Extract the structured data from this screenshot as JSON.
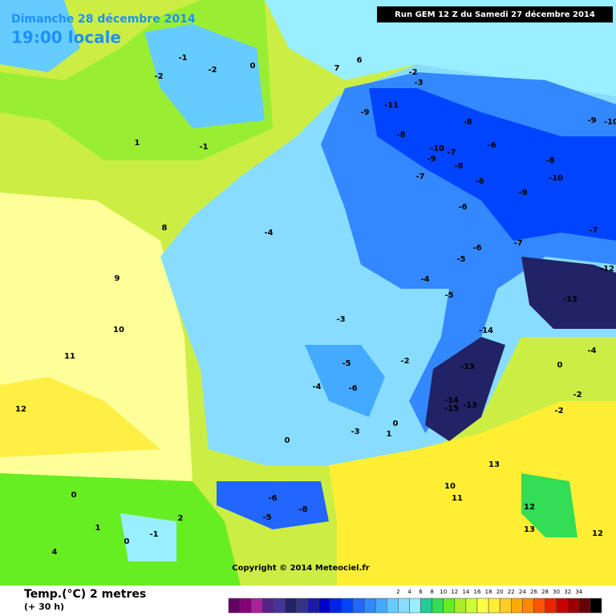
{
  "header": {
    "date": "Dimanche 28 décembre 2014",
    "time": "19:00 locale",
    "run": "Run GEM 12 Z du Samedi 27 décembre 2014"
  },
  "footer": {
    "copyright": "Copyright © 2014 Meteociel.fr",
    "variable": "Temp.(°C) 2 metres",
    "lead": "(+ 30 h)"
  },
  "legend": {
    "ticks": [
      2,
      4,
      6,
      8,
      10,
      12,
      14,
      16,
      18,
      20,
      22,
      24,
      26,
      28,
      30,
      32,
      34
    ],
    "colors": [
      "#660066",
      "#880077",
      "#aa2299",
      "#552288",
      "#443399",
      "#222266",
      "#333388",
      "#1a1aaa",
      "#0000cc",
      "#0022ee",
      "#0044ff",
      "#2266ff",
      "#3388ff",
      "#44aaff",
      "#66ccff",
      "#88ddff",
      "#99eeff",
      "#22cc99",
      "#33dd55",
      "#66ee22",
      "#aaee22",
      "#ccff33",
      "#ffff44",
      "#ffee33",
      "#ffcc22",
      "#ffaa00",
      "#ff8800",
      "#ff5500",
      "#ee2200",
      "#cc0000",
      "#990000",
      "#660000",
      "#000000"
    ]
  },
  "map": {
    "labels": [
      "-1",
      "-2",
      "0",
      "-2",
      "7",
      "6",
      "-2",
      "-3",
      "-9",
      "-11",
      "-8",
      "-10",
      "-9",
      "-8",
      "-7",
      "-8",
      "-6",
      "-7",
      "-6",
      "-6",
      "-10",
      "-9",
      "-8",
      "-9",
      "-10",
      "-7",
      "-7",
      "-6",
      "-5",
      "-4",
      "-5",
      "-12",
      "-13",
      "-4",
      "-3",
      "-5",
      "-4",
      "-6",
      "-2",
      "-14",
      "-13",
      "-14",
      "-15",
      "-13",
      "0",
      "1",
      "-3",
      "0",
      "-6",
      "-8",
      "-5",
      "8",
      "9",
      "10",
      "11",
      "12",
      "0",
      "1",
      "-1",
      "0",
      "4",
      "2",
      "13",
      "11",
      "10",
      "12",
      "13",
      "12",
      "-2",
      "-2",
      "-4",
      "0",
      "1",
      "-1"
    ]
  }
}
